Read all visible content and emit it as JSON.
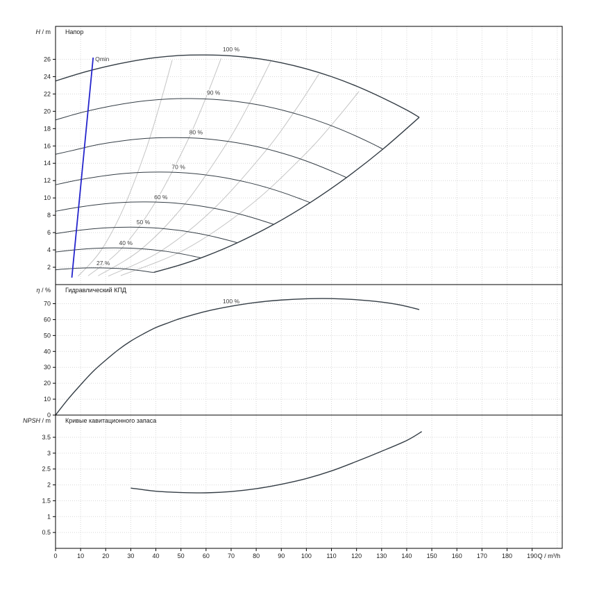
{
  "colors": {
    "curve": "#333c44",
    "iso": "#c4c4c4",
    "grid": "#d6d6d6",
    "axis": "#000000",
    "qmin": "#2424cc",
    "text": "#1a1a1a",
    "label": "#3a3a3a",
    "bg": "#ffffff"
  },
  "x_axis": {
    "label": "Q / m³/h",
    "xlim": [
      0,
      202
    ],
    "ticks": [
      0,
      10,
      20,
      30,
      40,
      50,
      60,
      70,
      80,
      90,
      100,
      110,
      120,
      130,
      140,
      150,
      160,
      170,
      180,
      190
    ],
    "grid_extra": [
      200
    ]
  },
  "chart_data": [
    {
      "type": "line",
      "title": "Напор",
      "ylabel": {
        "italic": "H",
        "unit": " / m"
      },
      "ylim": [
        0,
        29.8
      ],
      "yticks": [
        2,
        4,
        6,
        8,
        10,
        12,
        14,
        16,
        18,
        20,
        22,
        24,
        26
      ],
      "series": [
        {
          "name": "100 %",
          "label_pos": [
            70,
            26.9
          ],
          "points": [
            [
              0,
              23.5
            ],
            [
              10,
              24.4
            ],
            [
              20,
              25.15
            ],
            [
              30,
              25.75
            ],
            [
              40,
              26.2
            ],
            [
              50,
              26.45
            ],
            [
              60,
              26.5
            ],
            [
              70,
              26.4
            ],
            [
              80,
              26.1
            ],
            [
              90,
              25.6
            ],
            [
              100,
              24.9
            ],
            [
              110,
              24.0
            ],
            [
              120,
              22.9
            ],
            [
              130,
              21.6
            ],
            [
              140,
              20.15
            ],
            [
              145,
              19.3
            ]
          ]
        },
        {
          "name": "90 %",
          "label_pos": [
            63,
            21.9
          ],
          "points": [
            [
              0,
              19.0
            ],
            [
              9,
              19.76
            ],
            [
              18,
              20.37
            ],
            [
              27,
              20.86
            ],
            [
              36,
              21.22
            ],
            [
              45,
              21.42
            ],
            [
              54,
              21.47
            ],
            [
              63,
              21.38
            ],
            [
              72,
              21.14
            ],
            [
              81,
              20.74
            ],
            [
              90,
              20.17
            ],
            [
              99,
              19.44
            ],
            [
              108,
              18.55
            ],
            [
              117,
              17.5
            ],
            [
              126,
              16.3
            ],
            [
              130.5,
              15.63
            ]
          ]
        },
        {
          "name": "80 %",
          "label_pos": [
            56,
            17.35
          ],
          "points": [
            [
              0,
              15.04
            ],
            [
              8,
              15.56
            ],
            [
              16,
              16.1
            ],
            [
              24,
              16.48
            ],
            [
              32,
              16.77
            ],
            [
              40,
              16.93
            ],
            [
              48,
              16.96
            ],
            [
              56,
              16.9
            ],
            [
              64,
              16.7
            ],
            [
              72,
              16.38
            ],
            [
              80,
              15.94
            ],
            [
              88,
              15.36
            ],
            [
              96,
              14.66
            ],
            [
              104,
              13.82
            ],
            [
              112,
              12.86
            ],
            [
              116,
              12.35
            ]
          ]
        },
        {
          "name": "70 %",
          "label_pos": [
            49,
            13.35
          ],
          "points": [
            [
              0,
              11.52
            ],
            [
              7,
              11.96
            ],
            [
              14,
              12.32
            ],
            [
              21,
              12.62
            ],
            [
              28,
              12.84
            ],
            [
              35,
              12.96
            ],
            [
              42,
              12.99
            ],
            [
              49,
              12.94
            ],
            [
              56,
              12.79
            ],
            [
              63,
              12.54
            ],
            [
              70,
              12.2
            ],
            [
              77,
              11.76
            ],
            [
              84,
              11.22
            ],
            [
              91,
              10.58
            ],
            [
              98,
              9.85
            ],
            [
              101.5,
              9.46
            ]
          ]
        },
        {
          "name": "60 %",
          "label_pos": [
            42,
            9.85
          ],
          "points": [
            [
              0,
              8.46
            ],
            [
              6,
              8.78
            ],
            [
              12,
              9.05
            ],
            [
              18,
              9.27
            ],
            [
              24,
              9.43
            ],
            [
              30,
              9.52
            ],
            [
              36,
              9.54
            ],
            [
              42,
              9.5
            ],
            [
              48,
              9.4
            ],
            [
              54,
              9.22
            ],
            [
              60,
              8.96
            ],
            [
              66,
              8.64
            ],
            [
              72,
              8.24
            ],
            [
              78,
              7.77
            ],
            [
              84,
              7.23
            ],
            [
              87,
              6.95
            ]
          ]
        },
        {
          "name": "50 %",
          "label_pos": [
            35,
            6.95
          ],
          "points": [
            [
              0,
              5.88
            ],
            [
              5,
              6.1
            ],
            [
              10,
              6.29
            ],
            [
              15,
              6.44
            ],
            [
              20,
              6.55
            ],
            [
              25,
              6.61
            ],
            [
              30,
              6.63
            ],
            [
              35,
              6.6
            ],
            [
              40,
              6.53
            ],
            [
              45,
              6.4
            ],
            [
              50,
              6.23
            ],
            [
              55,
              6.0
            ],
            [
              60,
              5.73
            ],
            [
              65,
              5.4
            ],
            [
              70,
              5.03
            ],
            [
              72.5,
              4.83
            ]
          ]
        },
        {
          "name": "40 %",
          "label_pos": [
            28,
            4.55
          ],
          "points": [
            [
              0,
              3.76
            ],
            [
              4,
              3.9
            ],
            [
              8,
              4.02
            ],
            [
              12,
              4.12
            ],
            [
              16,
              4.19
            ],
            [
              20,
              4.23
            ],
            [
              24,
              4.24
            ],
            [
              28,
              4.22
            ],
            [
              32,
              4.18
            ],
            [
              36,
              4.1
            ],
            [
              40,
              3.98
            ],
            [
              44,
              3.84
            ],
            [
              48,
              3.66
            ],
            [
              52,
              3.45
            ],
            [
              56,
              3.21
            ],
            [
              58,
              3.09
            ]
          ]
        },
        {
          "name": "27 %",
          "label_pos": [
            19,
            2.25
          ],
          "points": [
            [
              0,
              1.71
            ],
            [
              2.7,
              1.78
            ],
            [
              5.4,
              1.83
            ],
            [
              8.1,
              1.88
            ],
            [
              10.8,
              1.91
            ],
            [
              13.5,
              1.93
            ],
            [
              16.2,
              1.93
            ],
            [
              18.9,
              1.92
            ],
            [
              21.6,
              1.9
            ],
            [
              24.3,
              1.87
            ],
            [
              27,
              1.82
            ],
            [
              29.7,
              1.75
            ],
            [
              32.4,
              1.66
            ],
            [
              35.1,
              1.56
            ],
            [
              37.8,
              1.44
            ],
            [
              39.2,
              1.41
            ]
          ]
        }
      ],
      "envelope": {
        "points": [
          [
            39.2,
            1.41
          ],
          [
            50,
            2.3
          ],
          [
            60,
            3.3
          ],
          [
            72.5,
            4.83
          ],
          [
            87,
            6.95
          ],
          [
            101.5,
            9.46
          ],
          [
            116,
            12.35
          ],
          [
            130.5,
            15.63
          ],
          [
            145,
            19.3
          ]
        ]
      },
      "isolines": [
        {
          "points": [
            [
              9,
              0.97
            ],
            [
              18,
              3.89
            ],
            [
              27,
              8.75
            ],
            [
              36,
              15.55
            ],
            [
              42,
              21.2
            ],
            [
              46.5,
              25.9
            ]
          ]
        },
        {
          "points": [
            [
              13,
              1.01
            ],
            [
              26,
              4.06
            ],
            [
              39,
              9.13
            ],
            [
              52,
              16.22
            ],
            [
              60,
              21.6
            ],
            [
              66,
              26.1
            ]
          ]
        },
        {
          "points": [
            [
              17,
              1.01
            ],
            [
              34,
              4.05
            ],
            [
              51,
              9.1
            ],
            [
              68,
              16.18
            ],
            [
              78,
              21.3
            ],
            [
              86,
              25.9
            ]
          ]
        },
        {
          "points": [
            [
              21,
              0.97
            ],
            [
              42,
              3.88
            ],
            [
              63,
              8.73
            ],
            [
              84,
              15.52
            ],
            [
              96,
              20.3
            ],
            [
              105,
              24.3
            ]
          ]
        },
        {
          "points": [
            [
              26,
              1.03
            ],
            [
              52,
              4.11
            ],
            [
              78,
              9.25
            ],
            [
              100,
              15.2
            ],
            [
              112,
              19.1
            ],
            [
              121,
              22.3
            ]
          ]
        }
      ],
      "qmin": {
        "label": "Qmin",
        "points": [
          [
            6.5,
            0.8
          ],
          [
            15,
            26.2
          ]
        ],
        "label_pos": [
          15.8,
          25.8
        ]
      }
    },
    {
      "type": "line",
      "title": "Гидравлический КПД",
      "ylabel": {
        "italic": "η",
        "unit": " / %"
      },
      "ylim": [
        0,
        82
      ],
      "yticks": [
        0,
        10,
        20,
        30,
        40,
        50,
        60,
        70
      ],
      "series": [
        {
          "name": "100 %",
          "label_pos": [
            70,
            70.3
          ],
          "points": [
            [
              0,
              0
            ],
            [
              5,
              10
            ],
            [
              10,
              19
            ],
            [
              15,
              27.5
            ],
            [
              20,
              34.5
            ],
            [
              25,
              41
            ],
            [
              30,
              46.5
            ],
            [
              35,
              51
            ],
            [
              40,
              55
            ],
            [
              45,
              58
            ],
            [
              50,
              60.8
            ],
            [
              60,
              65.2
            ],
            [
              70,
              68.4
            ],
            [
              80,
              70.8
            ],
            [
              90,
              72.3
            ],
            [
              100,
              73.1
            ],
            [
              110,
              73.2
            ],
            [
              120,
              72.5
            ],
            [
              130,
              71
            ],
            [
              138,
              69
            ],
            [
              145,
              66.3
            ]
          ]
        }
      ]
    },
    {
      "type": "line",
      "title": "Кривые кавитационного запаса",
      "ylabel": {
        "italic": "NPSH",
        "unit": " / m"
      },
      "ylim": [
        0,
        4.2
      ],
      "yticks": [
        0.5,
        1,
        1.5,
        2,
        2.5,
        3,
        3.5
      ],
      "series": [
        {
          "name": "",
          "points": [
            [
              30,
              1.9
            ],
            [
              40,
              1.8
            ],
            [
              50,
              1.76
            ],
            [
              60,
              1.75
            ],
            [
              70,
              1.79
            ],
            [
              80,
              1.88
            ],
            [
              90,
              2.02
            ],
            [
              100,
              2.2
            ],
            [
              110,
              2.44
            ],
            [
              120,
              2.74
            ],
            [
              130,
              3.06
            ],
            [
              140,
              3.4
            ],
            [
              146,
              3.68
            ]
          ]
        }
      ]
    }
  ]
}
